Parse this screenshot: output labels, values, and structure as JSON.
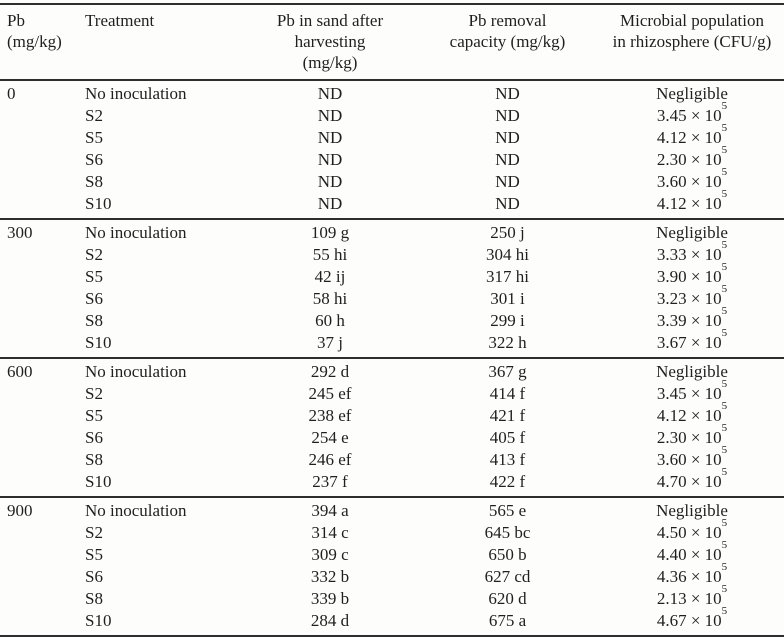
{
  "page": {
    "background": "#fdfdfb",
    "text_color": "#1f1f1f",
    "rule_color": "#2e2e2e"
  },
  "table": {
    "header": {
      "pb_level": [
        "Pb",
        "(mg/kg)"
      ],
      "treatment": [
        "Treatment"
      ],
      "pb_sand": [
        "Pb in sand after",
        "harvesting",
        "(mg/kg)"
      ],
      "pb_removal": [
        "Pb removal",
        "capacity (mg/kg)"
      ],
      "microbial": [
        "Microbial population",
        "in rhizosphere (CFU/g)"
      ]
    },
    "groups": [
      {
        "pb": "0",
        "rows": [
          {
            "treatment": "No inoculation",
            "pb_sand": "ND",
            "pb_removal": "ND",
            "microbial": {
              "base": "Negligible",
              "exp": ""
            }
          },
          {
            "treatment": "S2",
            "pb_sand": "ND",
            "pb_removal": "ND",
            "microbial": {
              "base": "3.45 × 10",
              "exp": "5"
            }
          },
          {
            "treatment": "S5",
            "pb_sand": "ND",
            "pb_removal": "ND",
            "microbial": {
              "base": "4.12 × 10",
              "exp": "5"
            }
          },
          {
            "treatment": "S6",
            "pb_sand": "ND",
            "pb_removal": "ND",
            "microbial": {
              "base": "2.30 × 10",
              "exp": "5"
            }
          },
          {
            "treatment": "S8",
            "pb_sand": "ND",
            "pb_removal": "ND",
            "microbial": {
              "base": "3.60 × 10",
              "exp": "5"
            }
          },
          {
            "treatment": "S10",
            "pb_sand": "ND",
            "pb_removal": "ND",
            "microbial": {
              "base": "4.12 × 10",
              "exp": "5"
            }
          }
        ]
      },
      {
        "pb": "300",
        "rows": [
          {
            "treatment": "No inoculation",
            "pb_sand": "109 g",
            "pb_removal": "250 j",
            "microbial": {
              "base": "Negligible",
              "exp": ""
            }
          },
          {
            "treatment": "S2",
            "pb_sand": "55 hi",
            "pb_removal": "304 hi",
            "microbial": {
              "base": "3.33 × 10",
              "exp": "5"
            }
          },
          {
            "treatment": "S5",
            "pb_sand": "42 ij",
            "pb_removal": "317 hi",
            "microbial": {
              "base": "3.90 × 10",
              "exp": "5"
            }
          },
          {
            "treatment": "S6",
            "pb_sand": "58 hi",
            "pb_removal": "301 i",
            "microbial": {
              "base": "3.23 × 10",
              "exp": "5"
            }
          },
          {
            "treatment": "S8",
            "pb_sand": "60 h",
            "pb_removal": "299 i",
            "microbial": {
              "base": "3.39 × 10",
              "exp": "5"
            }
          },
          {
            "treatment": "S10",
            "pb_sand": "37 j",
            "pb_removal": "322 h",
            "microbial": {
              "base": "3.67 × 10",
              "exp": "5"
            }
          }
        ]
      },
      {
        "pb": "600",
        "rows": [
          {
            "treatment": "No inoculation",
            "pb_sand": "292 d",
            "pb_removal": "367 g",
            "microbial": {
              "base": "Negligible",
              "exp": ""
            }
          },
          {
            "treatment": "S2",
            "pb_sand": "245 ef",
            "pb_removal": "414 f",
            "microbial": {
              "base": "3.45 × 10",
              "exp": "5"
            }
          },
          {
            "treatment": "S5",
            "pb_sand": "238 ef",
            "pb_removal": "421 f",
            "microbial": {
              "base": "4.12 × 10",
              "exp": "5"
            }
          },
          {
            "treatment": "S6",
            "pb_sand": "254 e",
            "pb_removal": "405 f",
            "microbial": {
              "base": "2.30 × 10",
              "exp": "5"
            }
          },
          {
            "treatment": "S8",
            "pb_sand": "246 ef",
            "pb_removal": "413 f",
            "microbial": {
              "base": "3.60 × 10",
              "exp": "5"
            }
          },
          {
            "treatment": "S10",
            "pb_sand": "237 f",
            "pb_removal": "422 f",
            "microbial": {
              "base": "4.70 × 10",
              "exp": "5"
            }
          }
        ]
      },
      {
        "pb": "900",
        "rows": [
          {
            "treatment": "No inoculation",
            "pb_sand": "394 a",
            "pb_removal": "565 e",
            "microbial": {
              "base": "Negligible",
              "exp": ""
            }
          },
          {
            "treatment": "S2",
            "pb_sand": "314 c",
            "pb_removal": "645 bc",
            "microbial": {
              "base": "4.50 × 10",
              "exp": "5"
            }
          },
          {
            "treatment": "S5",
            "pb_sand": "309 c",
            "pb_removal": "650 b",
            "microbial": {
              "base": "4.40 × 10",
              "exp": "5"
            }
          },
          {
            "treatment": "S6",
            "pb_sand": "332 b",
            "pb_removal": "627 cd",
            "microbial": {
              "base": "4.36 × 10",
              "exp": "5"
            }
          },
          {
            "treatment": "S8",
            "pb_sand": "339 b",
            "pb_removal": "620 d",
            "microbial": {
              "base": "2.13 × 10",
              "exp": "5"
            }
          },
          {
            "treatment": "S10",
            "pb_sand": "284 d",
            "pb_removal": "675 a",
            "microbial": {
              "base": "4.67 × 10",
              "exp": "5"
            }
          }
        ]
      }
    ]
  }
}
